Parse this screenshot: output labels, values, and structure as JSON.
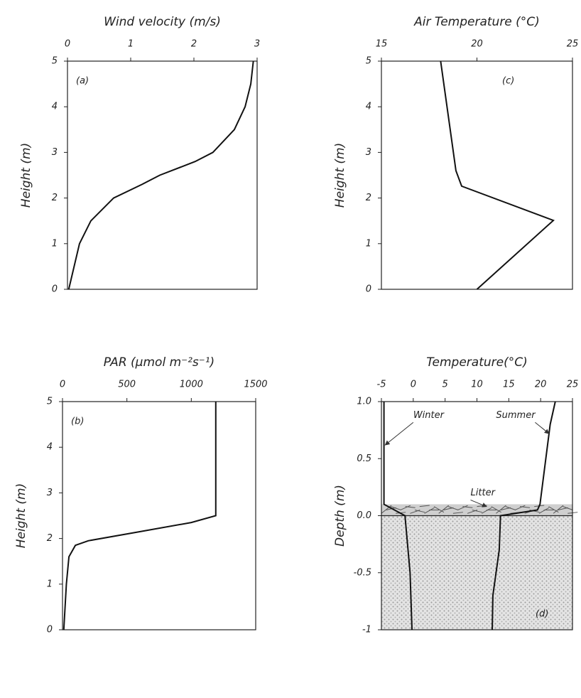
{
  "chart_data": [
    {
      "type": "line",
      "panel_label": "(a)",
      "title": "Wind velocity (m/s)",
      "y_label": "Height (m)",
      "xlim": [
        0,
        3
      ],
      "xticks": [
        0,
        1,
        2,
        3
      ],
      "ylim": [
        0,
        5
      ],
      "yticks": [
        0,
        1,
        2,
        3,
        4,
        5
      ],
      "series": [
        {
          "color": "#111111",
          "x": [
            0.02,
            0.19,
            0.37,
            0.73,
            1.18,
            1.46,
            2.02,
            2.3,
            2.64,
            2.81,
            2.9,
            2.94
          ],
          "values": [
            0,
            1,
            1.5,
            2,
            2.3,
            2.5,
            2.8,
            3,
            3.5,
            4,
            4.5,
            5
          ]
        }
      ]
    },
    {
      "type": "line",
      "panel_label": "(b)",
      "title": "PAR (μmol m⁻²s⁻¹)",
      "y_label": "Height (m)",
      "xlim": [
        0,
        1500
      ],
      "xticks": [
        0,
        500,
        1000,
        1500
      ],
      "ylim": [
        0,
        5
      ],
      "yticks": [
        0,
        1,
        2,
        3,
        4,
        5
      ],
      "series": [
        {
          "color": "#111111",
          "x": [
            10,
            30,
            50,
            100,
            200,
            600,
            1000,
            1190,
            1190
          ],
          "values": [
            0,
            1,
            1.6,
            1.85,
            1.95,
            2.15,
            2.35,
            2.5,
            5
          ]
        }
      ]
    },
    {
      "type": "line",
      "panel_label": "(c)",
      "title": "Air Temperature (°C)",
      "y_label": "Height (m)",
      "xlim": [
        15,
        25
      ],
      "xticks": [
        15,
        20,
        25
      ],
      "ylim": [
        0,
        5
      ],
      "yticks": [
        0,
        1,
        2,
        3,
        4,
        5
      ],
      "series": [
        {
          "color": "#111111",
          "x": [
            18.1,
            18.9,
            19.2,
            24.0,
            20.0
          ],
          "values": [
            5,
            2.6,
            2.26,
            1.51,
            0
          ]
        }
      ]
    },
    {
      "type": "line",
      "panel_label": "(d)",
      "title": "Temperature(°C)",
      "y_label": "Depth (m)",
      "annotations": [
        "Winter",
        "Summer",
        "Litter"
      ],
      "xlim": [
        -5,
        25
      ],
      "xticks": [
        -5,
        0,
        5,
        10,
        15,
        20,
        25
      ],
      "ylim": [
        -1,
        1
      ],
      "yticks": [
        -1,
        -0.5,
        {
          "value": 0,
          "label": "0.0"
        },
        0.5,
        {
          "value": 1,
          "label": "1.0"
        }
      ],
      "series": [
        {
          "name": "Winter",
          "color": "#111111",
          "x": [
            -4.6,
            -4.6,
            -1.3,
            -0.5,
            -0.2
          ],
          "values": [
            1,
            0.1,
            0,
            -0.5,
            -1
          ]
        },
        {
          "name": "Summer",
          "color": "#111111",
          "x": [
            22.3,
            21.5,
            19.9,
            19.5,
            13.7,
            13.5,
            12.5,
            12.4
          ],
          "values": [
            1,
            0.8,
            0.1,
            0.05,
            0,
            -0.3,
            -0.7,
            -1
          ]
        }
      ]
    }
  ]
}
